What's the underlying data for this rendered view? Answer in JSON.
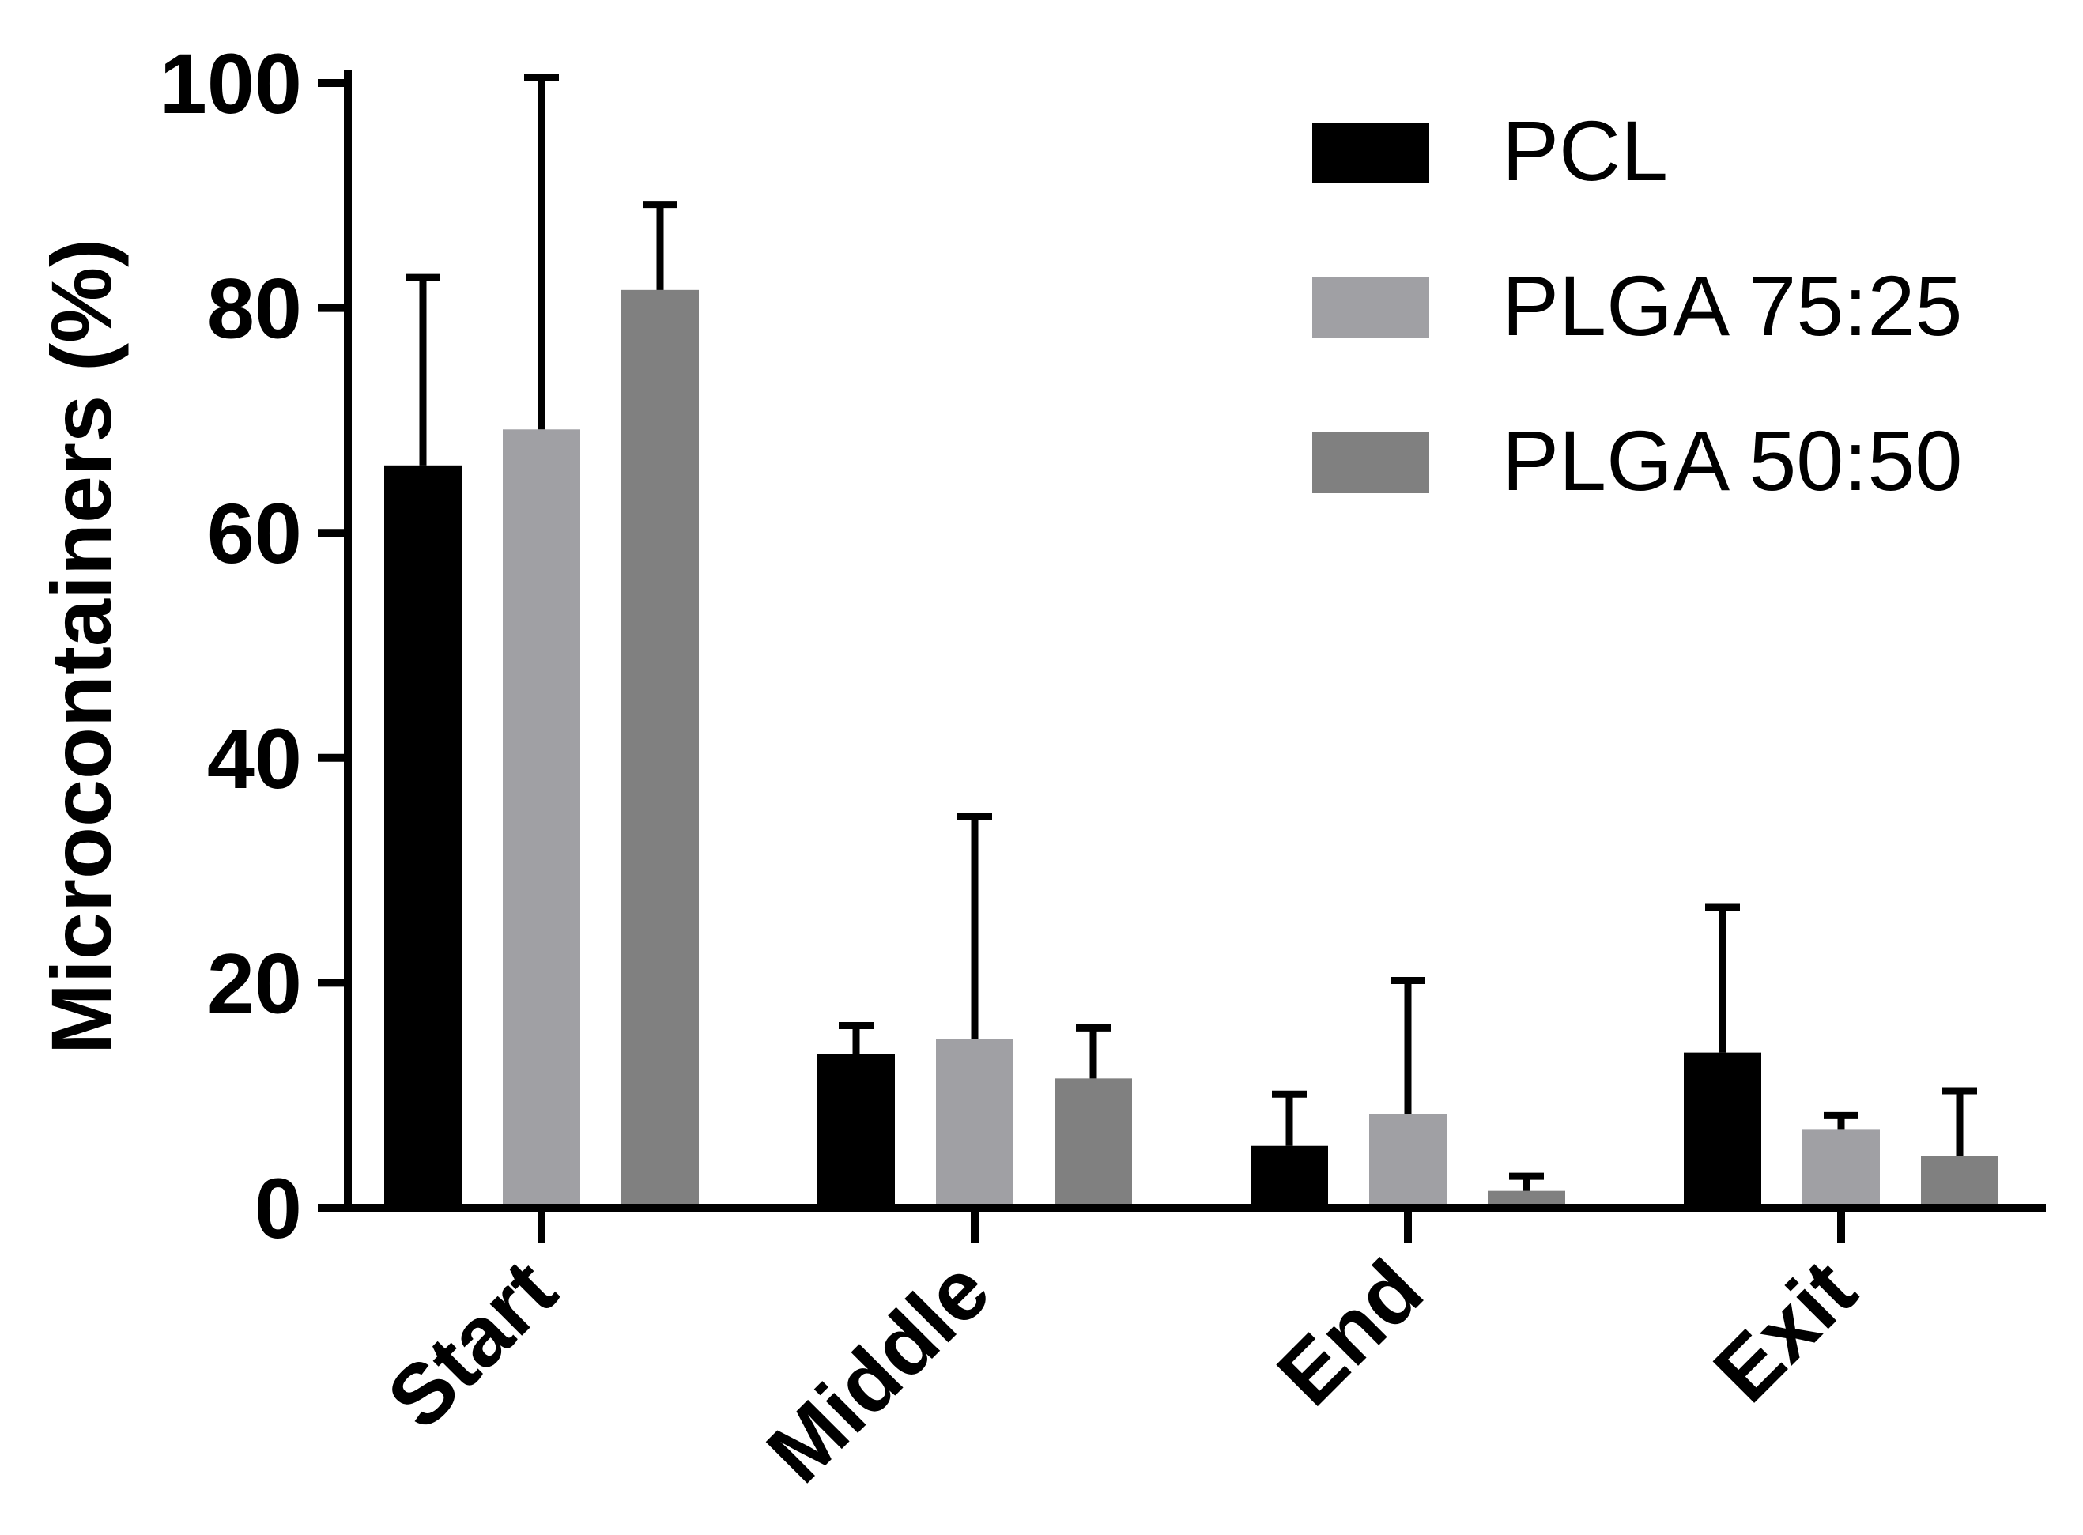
{
  "chart_data": {
    "type": "bar",
    "title": "",
    "xlabel": "",
    "ylabel": "Microcontainers (%)",
    "ylim": [
      0,
      100
    ],
    "yticks": [
      0,
      20,
      40,
      60,
      80,
      100
    ],
    "yticks_text": [
      "0",
      "20",
      "40",
      "60",
      "80",
      "100"
    ],
    "categories": [
      "Start",
      "Middle",
      "End",
      "Exit"
    ],
    "series": [
      {
        "name": "PCL",
        "color": "#000000",
        "values": [
          66,
          13.7,
          5.5,
          13.8
        ],
        "errors": [
          16.7,
          2.5,
          4.6,
          12.9
        ]
      },
      {
        "name": "PLGA 75:25",
        "color": "#a0a0a4",
        "values": [
          69.2,
          15,
          8.3,
          7
        ],
        "errors": [
          31.3,
          19.8,
          11.9,
          1.2
        ]
      },
      {
        "name": "PLGA 50:50",
        "color": "#808080",
        "values": [
          81.6,
          11.5,
          1.5,
          4.6
        ],
        "errors": [
          7.6,
          4.5,
          1.3,
          5.8
        ]
      }
    ],
    "legend": {
      "position": "top-right"
    },
    "grid": false
  }
}
